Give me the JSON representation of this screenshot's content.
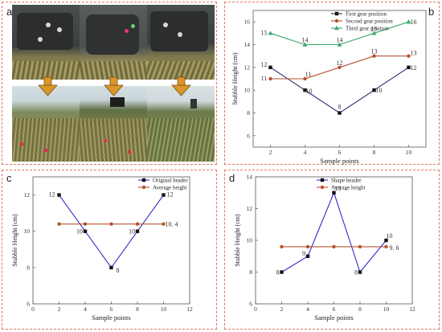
{
  "panels": {
    "a": {
      "letter": "a"
    },
    "b": {
      "letter": "b"
    },
    "c": {
      "letter": "c"
    },
    "d": {
      "letter": "d"
    }
  },
  "photo_colors": {
    "arrow": "#d9962a",
    "grass": "#8a8a4a",
    "sky": "#cfdbe0",
    "metal": "#3a3a3a"
  },
  "chart_data": [
    {
      "id": "b",
      "type": "line",
      "xlabel": "Sample points",
      "ylabel": "Stubble Height (cm)",
      "xlim": [
        1,
        11
      ],
      "ylim": [
        5,
        17
      ],
      "xticks": [
        2,
        4,
        6,
        8,
        10
      ],
      "yticks": [
        6,
        8,
        10,
        12,
        14,
        16
      ],
      "legend_position": "top-right",
      "x": [
        2,
        4,
        6,
        8,
        10
      ],
      "series": [
        {
          "name": "First gear position",
          "values": [
            12,
            10,
            8,
            10,
            12
          ],
          "labels": [
            "12",
            "10",
            "8",
            "10",
            "12"
          ],
          "color": "#2b2b6e",
          "marker": "square"
        },
        {
          "name": "Second gear position",
          "values": [
            11,
            11,
            12,
            13,
            13
          ],
          "labels": [
            "11",
            "11",
            "12",
            "13",
            "13"
          ],
          "color": "#b5532f",
          "marker": "circle"
        },
        {
          "name": "Third gear position",
          "values": [
            15,
            14,
            14,
            15,
            16
          ],
          "labels": [
            "15",
            "14",
            "14",
            "15",
            "16"
          ],
          "color": "#3aa86b",
          "marker": "triangle"
        }
      ]
    },
    {
      "id": "c",
      "type": "line",
      "xlabel": "Sample points",
      "ylabel": "Stubble Height (cm)",
      "xlim": [
        0,
        12
      ],
      "ylim": [
        6,
        13
      ],
      "xticks": [
        0,
        2,
        4,
        6,
        8,
        10,
        12
      ],
      "yticks": [
        6,
        8,
        10,
        12
      ],
      "legend_position": "top-right",
      "x": [
        2,
        4,
        6,
        8,
        10
      ],
      "series": [
        {
          "name": "Original header",
          "values": [
            12,
            10,
            8,
            10,
            12
          ],
          "labels": [
            "12",
            "10",
            "8",
            "10",
            "12"
          ],
          "color": "#2d2dc8",
          "marker": "square"
        },
        {
          "name": "Average height",
          "values": [
            10.4,
            10.4,
            10.4,
            10.4,
            10.4
          ],
          "labels": [
            "",
            "",
            "",
            "",
            "10. 4"
          ],
          "color": "#b5532f",
          "marker": "circle"
        }
      ]
    },
    {
      "id": "d",
      "type": "line",
      "xlabel": "Sample points",
      "ylabel": "Stubble Height (cm)",
      "xlim": [
        0,
        12
      ],
      "ylim": [
        6,
        14
      ],
      "xticks": [
        0,
        2,
        4,
        6,
        8,
        10,
        12
      ],
      "yticks": [
        6,
        8,
        10,
        12,
        14
      ],
      "legend_position": "top-right",
      "x": [
        2,
        4,
        6,
        8,
        10
      ],
      "series": [
        {
          "name": "Shape header",
          "values": [
            8,
            9,
            13,
            8,
            10
          ],
          "labels": [
            "8",
            "9",
            "13",
            "8",
            "10"
          ],
          "color": "#2d2dc8",
          "marker": "square"
        },
        {
          "name": "Average height",
          "values": [
            9.6,
            9.6,
            9.6,
            9.6,
            9.6
          ],
          "labels": [
            "",
            "",
            "",
            "",
            "9. 6"
          ],
          "color": "#b5532f",
          "marker": "circle"
        }
      ]
    }
  ]
}
